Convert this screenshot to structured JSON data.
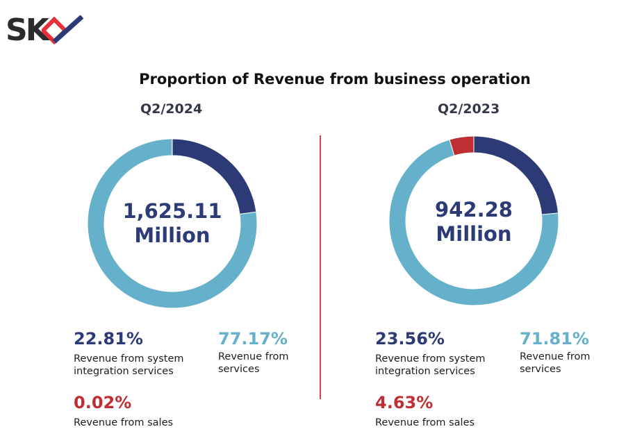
{
  "brand": {
    "logo_text": "SK"
  },
  "colors": {
    "system_integration": "#2c3a76",
    "services": "#65b0cb",
    "sales": "#bf2e32",
    "divider": "#d9434a",
    "logo_red": "#e8303a",
    "logo_navy": "#2c3a76"
  },
  "title": "Proportion of Revenue from business operation",
  "chart_data": [
    {
      "type": "pie",
      "period": "Q2/2024",
      "center": {
        "value": "1,625.11",
        "unit": "Million"
      },
      "categories": [
        "Revenue from system integration services",
        "Revenue from services",
        "Revenue from sales"
      ],
      "values": [
        22.81,
        77.17,
        0.02
      ],
      "labels": [
        "22.81%",
        "77.17%",
        "0.02%"
      ],
      "series": [
        {
          "name": "Revenue from system integration services",
          "value": 22.81,
          "label": "22.81%",
          "color": "#2c3a76"
        },
        {
          "name": "Revenue from services",
          "value": 77.17,
          "label": "77.17%",
          "color": "#65b0cb"
        },
        {
          "name": "Revenue from sales",
          "value": 0.02,
          "label": "0.02%",
          "color": "#bf2e32"
        }
      ]
    },
    {
      "type": "pie",
      "period": "Q2/2023",
      "center": {
        "value": "942.28",
        "unit": "Million"
      },
      "categories": [
        "Revenue from system integration services",
        "Revenue from services",
        "Revenue from sales"
      ],
      "values": [
        23.56,
        71.81,
        4.63
      ],
      "labels": [
        "23.56%",
        "71.81%",
        "4.63%"
      ],
      "series": [
        {
          "name": "Revenue from system integration services",
          "value": 23.56,
          "label": "23.56%",
          "color": "#2c3a76"
        },
        {
          "name": "Revenue from services",
          "value": 71.81,
          "label": "71.81%",
          "color": "#65b0cb"
        },
        {
          "name": "Revenue from sales",
          "value": 4.63,
          "label": "4.63%",
          "color": "#bf2e32"
        }
      ]
    }
  ],
  "legend_text": {
    "system_integration_line1": "Revenue from system",
    "system_integration_line2": "integration services",
    "services_line1": "Revenue from",
    "services_line2": "services",
    "sales": "Revenue from sales"
  }
}
